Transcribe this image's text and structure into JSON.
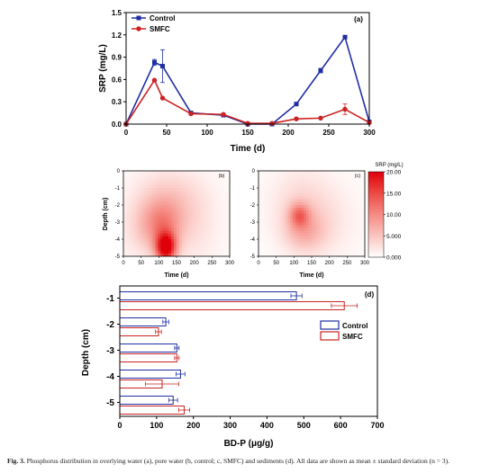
{
  "chart_data": [
    {
      "type": "line",
      "panel_label": "(a)",
      "xlabel": "Time (d)",
      "ylabel": "SRP (mg/L)",
      "xlim": [
        0,
        300
      ],
      "ylim": [
        0,
        1.5
      ],
      "xticks": [
        0,
        50,
        100,
        150,
        200,
        250,
        300
      ],
      "yticks": [
        0.0,
        0.3,
        0.6,
        0.9,
        1.2,
        1.5
      ],
      "ytick_labels": [
        "0.0",
        "0.3",
        "0.6",
        "0.9",
        "1.2",
        "1.5"
      ],
      "legend_position": "top-left",
      "series": [
        {
          "name": "Control",
          "color": "#1f2fa3",
          "marker": "square",
          "x": [
            0,
            35,
            45,
            80,
            120,
            150,
            180,
            210,
            240,
            270,
            300
          ],
          "y": [
            0.0,
            0.83,
            0.78,
            0.15,
            0.12,
            0.0,
            0.0,
            0.27,
            0.72,
            1.17,
            0.03
          ],
          "err": [
            0,
            0.04,
            0.22,
            0.02,
            0.02,
            0,
            0,
            0.01,
            0.03,
            0.01,
            0
          ]
        },
        {
          "name": "SMFC",
          "color": "#cc2222",
          "marker": "circle",
          "x": [
            0,
            35,
            45,
            80,
            120,
            150,
            180,
            210,
            240,
            270,
            300
          ],
          "y": [
            0.0,
            0.59,
            0.35,
            0.14,
            0.13,
            0.01,
            0.01,
            0.07,
            0.08,
            0.2,
            0.02
          ],
          "err": [
            0,
            0,
            0,
            0.01,
            0.01,
            0,
            0,
            0,
            0,
            0.07,
            0
          ]
        }
      ]
    },
    {
      "type": "heatmap",
      "panel_label": "(b)",
      "xlabel": "Time (d)",
      "ylabel": "Depth (cm)",
      "xlim": [
        0,
        300
      ],
      "ylim": [
        -5,
        0
      ],
      "xticks": [
        0,
        50,
        100,
        150,
        200,
        250,
        300
      ],
      "yticks": [
        0,
        -1,
        -2,
        -3,
        -4,
        -5
      ],
      "hotspots": [
        {
          "x": 120,
          "y": -4.5,
          "v": 20,
          "sx": 20,
          "sy": 0.6
        },
        {
          "x": 110,
          "y": -3.1,
          "v": 8,
          "sx": 40,
          "sy": 1.0
        },
        {
          "x": 130,
          "y": -1.5,
          "v": 3.5,
          "sx": 70,
          "sy": 1.2
        },
        {
          "x": 60,
          "y": -3.5,
          "v": 2.5,
          "sx": 50,
          "sy": 1.2
        },
        {
          "x": 200,
          "y": -3.5,
          "v": 2,
          "sx": 50,
          "sy": 1.5
        }
      ]
    },
    {
      "type": "heatmap",
      "panel_label": "(c)",
      "xlabel": "Time (d)",
      "xlim": [
        0,
        300
      ],
      "ylim": [
        -5,
        0
      ],
      "xticks": [
        0,
        50,
        100,
        150,
        200,
        250,
        300
      ],
      "yticks": [
        0,
        -1,
        -2,
        -3,
        -4,
        -5
      ],
      "colorbar_label": "SRP (mg/L)",
      "colorbar_range": [
        0,
        20
      ],
      "colorbar_ticks": [
        "20.00",
        "15.00",
        "10.00",
        "5.000",
        "0.000"
      ],
      "hotspots": [
        {
          "x": 115,
          "y": -2.6,
          "v": 8.5,
          "sx": 20,
          "sy": 0.5
        },
        {
          "x": 130,
          "y": -3.6,
          "v": 5,
          "sx": 40,
          "sy": 0.8
        },
        {
          "x": 120,
          "y": -2.0,
          "v": 3,
          "sx": 60,
          "sy": 1.5
        },
        {
          "x": 200,
          "y": -3.0,
          "v": 1.5,
          "sx": 60,
          "sy": 1.5
        }
      ]
    },
    {
      "type": "bar",
      "orientation": "horizontal",
      "panel_label": "(d)",
      "xlabel": "BD-P (μg/g)",
      "ylabel": "Depth (cm)",
      "xlim": [
        0,
        700
      ],
      "xticks": [
        0,
        100,
        200,
        300,
        400,
        500,
        600,
        700
      ],
      "categories": [
        "-1",
        "-2",
        "-3",
        "-4",
        "-5"
      ],
      "legend_position": "center-right",
      "series": [
        {
          "name": "Control",
          "color": "#1f2fa3",
          "values": [
            480,
            125,
            155,
            165,
            145
          ],
          "err": [
            15,
            8,
            6,
            12,
            12
          ]
        },
        {
          "name": "SMFC",
          "color": "#cc2222",
          "values": [
            610,
            105,
            155,
            115,
            175
          ],
          "err": [
            35,
            8,
            6,
            45,
            15
          ]
        }
      ]
    }
  ],
  "caption": {
    "label": "Fig. 3.",
    "text": "Phosphorus distribution in overlying water (a), pore water (b, control; c, SMFC) and sediments (d). All data are shown as mean ± standard deviation (n = 3)."
  }
}
